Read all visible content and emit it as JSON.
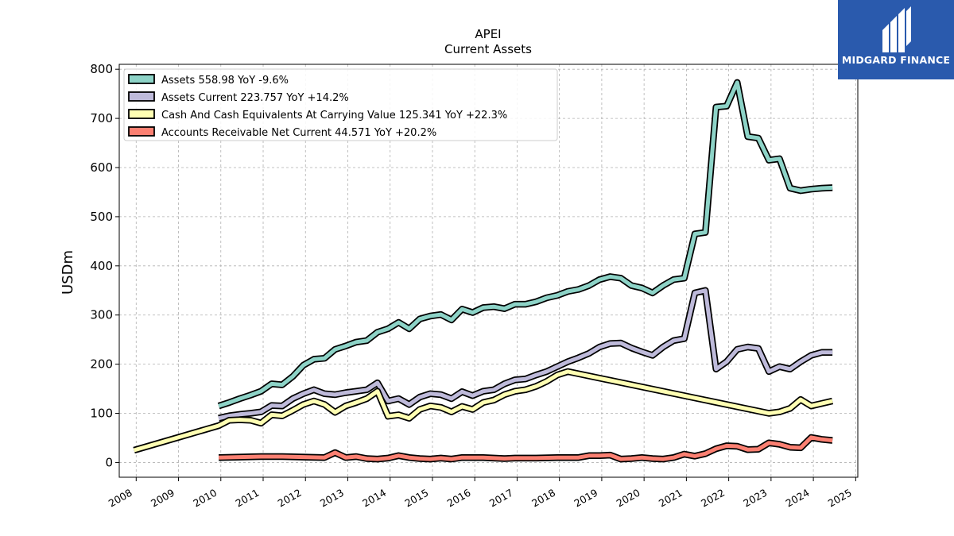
{
  "brand": {
    "name": "MIDGARD FINANCE",
    "icon": "midgard-logo-icon",
    "bg_color": "#2a5aad"
  },
  "chart_data": {
    "type": "line",
    "title": "APEI",
    "subtitle": "Current  Assets",
    "ylabel": "USDm",
    "xlabel": "",
    "xlim": [
      2007.6,
      2025.05
    ],
    "ylim": [
      -30,
      810
    ],
    "x_ticks": [
      "2008",
      "2009",
      "2010",
      "2011",
      "2012",
      "2013",
      "2014",
      "2015",
      "2016",
      "2017",
      "2018",
      "2019",
      "2020",
      "2021",
      "2022",
      "2023",
      "2024",
      "2025"
    ],
    "y_ticks": [
      0,
      100,
      200,
      300,
      400,
      500,
      600,
      700,
      800
    ],
    "grid": true,
    "legend_position": "top-left",
    "series": [
      {
        "name": "Assets  558.98 YoY -9.6%",
        "color": "#8dd3c7",
        "points": [
          [
            2009.95,
            115
          ],
          [
            2010.2,
            122
          ],
          [
            2010.45,
            130
          ],
          [
            2010.7,
            137
          ],
          [
            2010.95,
            145
          ],
          [
            2011.2,
            160
          ],
          [
            2011.45,
            158
          ],
          [
            2011.7,
            175
          ],
          [
            2011.95,
            198
          ],
          [
            2012.2,
            210
          ],
          [
            2012.45,
            212
          ],
          [
            2012.7,
            230
          ],
          [
            2012.95,
            237
          ],
          [
            2013.2,
            245
          ],
          [
            2013.45,
            248
          ],
          [
            2013.7,
            265
          ],
          [
            2013.95,
            272
          ],
          [
            2014.2,
            285
          ],
          [
            2014.45,
            272
          ],
          [
            2014.7,
            292
          ],
          [
            2014.95,
            298
          ],
          [
            2015.2,
            301
          ],
          [
            2015.45,
            290
          ],
          [
            2015.7,
            312
          ],
          [
            2015.95,
            305
          ],
          [
            2016.2,
            315
          ],
          [
            2016.45,
            317
          ],
          [
            2016.7,
            313
          ],
          [
            2016.95,
            322
          ],
          [
            2017.2,
            322
          ],
          [
            2017.45,
            327
          ],
          [
            2017.7,
            335
          ],
          [
            2017.95,
            340
          ],
          [
            2018.2,
            348
          ],
          [
            2018.45,
            352
          ],
          [
            2018.7,
            360
          ],
          [
            2018.95,
            372
          ],
          [
            2019.2,
            378
          ],
          [
            2019.45,
            375
          ],
          [
            2019.7,
            360
          ],
          [
            2019.95,
            355
          ],
          [
            2020.2,
            345
          ],
          [
            2020.45,
            360
          ],
          [
            2020.7,
            372
          ],
          [
            2020.95,
            375
          ],
          [
            2021.2,
            465
          ],
          [
            2021.45,
            468
          ],
          [
            2021.7,
            723
          ],
          [
            2021.95,
            725
          ],
          [
            2022.2,
            773
          ],
          [
            2022.45,
            663
          ],
          [
            2022.7,
            660
          ],
          [
            2022.95,
            615
          ],
          [
            2023.2,
            618
          ],
          [
            2023.45,
            558
          ],
          [
            2023.7,
            553
          ],
          [
            2023.95,
            556
          ],
          [
            2024.2,
            558
          ],
          [
            2024.45,
            559
          ]
        ]
      },
      {
        "name": "Assets Current  223.757 YoY +14.2%",
        "color": "#bebada",
        "points": [
          [
            2009.95,
            90
          ],
          [
            2010.2,
            95
          ],
          [
            2010.45,
            98
          ],
          [
            2010.7,
            100
          ],
          [
            2010.95,
            103
          ],
          [
            2011.2,
            116
          ],
          [
            2011.45,
            115
          ],
          [
            2011.7,
            130
          ],
          [
            2011.95,
            140
          ],
          [
            2012.2,
            148
          ],
          [
            2012.45,
            140
          ],
          [
            2012.7,
            138
          ],
          [
            2012.95,
            142
          ],
          [
            2013.2,
            145
          ],
          [
            2013.45,
            148
          ],
          [
            2013.7,
            162
          ],
          [
            2013.95,
            125
          ],
          [
            2014.2,
            130
          ],
          [
            2014.45,
            118
          ],
          [
            2014.7,
            133
          ],
          [
            2014.95,
            140
          ],
          [
            2015.2,
            138
          ],
          [
            2015.45,
            130
          ],
          [
            2015.7,
            144
          ],
          [
            2015.95,
            136
          ],
          [
            2016.2,
            145
          ],
          [
            2016.45,
            148
          ],
          [
            2016.7,
            160
          ],
          [
            2016.95,
            168
          ],
          [
            2017.2,
            170
          ],
          [
            2017.45,
            178
          ],
          [
            2017.7,
            185
          ],
          [
            2017.95,
            195
          ],
          [
            2018.2,
            205
          ],
          [
            2018.45,
            213
          ],
          [
            2018.7,
            222
          ],
          [
            2018.95,
            235
          ],
          [
            2019.2,
            242
          ],
          [
            2019.45,
            243
          ],
          [
            2019.7,
            233
          ],
          [
            2019.95,
            225
          ],
          [
            2020.2,
            218
          ],
          [
            2020.45,
            235
          ],
          [
            2020.7,
            248
          ],
          [
            2020.95,
            252
          ],
          [
            2021.2,
            345
          ],
          [
            2021.45,
            350
          ],
          [
            2021.7,
            190
          ],
          [
            2021.95,
            205
          ],
          [
            2022.2,
            230
          ],
          [
            2022.45,
            235
          ],
          [
            2022.7,
            232
          ],
          [
            2022.95,
            185
          ],
          [
            2023.2,
            195
          ],
          [
            2023.45,
            190
          ],
          [
            2023.7,
            205
          ],
          [
            2023.95,
            218
          ],
          [
            2024.2,
            224
          ],
          [
            2024.45,
            224
          ]
        ]
      },
      {
        "name": "Cash And Cash Equivalents At Carrying Value  125.341 YoY +22.3%",
        "color": "#ffffb3",
        "points": [
          [
            2007.95,
            25
          ],
          [
            2008.95,
            50
          ],
          [
            2009.95,
            75
          ],
          [
            2010.2,
            86
          ],
          [
            2010.45,
            87
          ],
          [
            2010.7,
            86
          ],
          [
            2010.95,
            80
          ],
          [
            2011.2,
            97
          ],
          [
            2011.45,
            95
          ],
          [
            2011.7,
            106
          ],
          [
            2011.95,
            118
          ],
          [
            2012.2,
            125
          ],
          [
            2012.45,
            118
          ],
          [
            2012.7,
            102
          ],
          [
            2012.95,
            115
          ],
          [
            2013.2,
            122
          ],
          [
            2013.45,
            130
          ],
          [
            2013.7,
            145
          ],
          [
            2013.95,
            94
          ],
          [
            2014.2,
            97
          ],
          [
            2014.45,
            90
          ],
          [
            2014.7,
            108
          ],
          [
            2014.95,
            115
          ],
          [
            2015.2,
            112
          ],
          [
            2015.45,
            103
          ],
          [
            2015.7,
            114
          ],
          [
            2015.95,
            108
          ],
          [
            2016.2,
            122
          ],
          [
            2016.45,
            127
          ],
          [
            2016.7,
            138
          ],
          [
            2016.95,
            145
          ],
          [
            2017.2,
            148
          ],
          [
            2017.45,
            155
          ],
          [
            2017.7,
            165
          ],
          [
            2017.95,
            178
          ],
          [
            2018.2,
            185
          ],
          [
            2022.95,
            100
          ],
          [
            2023.2,
            103
          ],
          [
            2023.45,
            110
          ],
          [
            2023.7,
            128
          ],
          [
            2023.95,
            115
          ],
          [
            2024.2,
            120
          ],
          [
            2024.45,
            125
          ]
        ]
      },
      {
        "name": "Accounts Receivable Net Current  44.571 YoY +20.2%",
        "color": "#fb8072",
        "points": [
          [
            2009.95,
            10
          ],
          [
            2010.45,
            11
          ],
          [
            2010.95,
            12
          ],
          [
            2011.45,
            12
          ],
          [
            2011.95,
            11
          ],
          [
            2012.45,
            10
          ],
          [
            2012.7,
            20
          ],
          [
            2012.95,
            10
          ],
          [
            2013.2,
            12
          ],
          [
            2013.45,
            8
          ],
          [
            2013.7,
            7
          ],
          [
            2013.95,
            9
          ],
          [
            2014.2,
            14
          ],
          [
            2014.45,
            10
          ],
          [
            2014.7,
            8
          ],
          [
            2014.95,
            7
          ],
          [
            2015.2,
            9
          ],
          [
            2015.45,
            7
          ],
          [
            2015.7,
            10
          ],
          [
            2015.95,
            10
          ],
          [
            2016.2,
            10
          ],
          [
            2016.45,
            9
          ],
          [
            2016.7,
            8
          ],
          [
            2016.95,
            9
          ],
          [
            2017.45,
            9
          ],
          [
            2017.95,
            10
          ],
          [
            2018.45,
            10
          ],
          [
            2018.7,
            14
          ],
          [
            2018.95,
            14
          ],
          [
            2019.2,
            15
          ],
          [
            2019.45,
            7
          ],
          [
            2019.7,
            8
          ],
          [
            2019.95,
            10
          ],
          [
            2020.2,
            8
          ],
          [
            2020.45,
            7
          ],
          [
            2020.7,
            10
          ],
          [
            2020.95,
            17
          ],
          [
            2021.2,
            13
          ],
          [
            2021.45,
            18
          ],
          [
            2021.7,
            28
          ],
          [
            2021.95,
            34
          ],
          [
            2022.2,
            33
          ],
          [
            2022.45,
            26
          ],
          [
            2022.7,
            27
          ],
          [
            2022.95,
            40
          ],
          [
            2023.2,
            37
          ],
          [
            2023.45,
            31
          ],
          [
            2023.7,
            30
          ],
          [
            2023.95,
            51
          ],
          [
            2024.2,
            47
          ],
          [
            2024.45,
            45
          ]
        ]
      }
    ]
  }
}
